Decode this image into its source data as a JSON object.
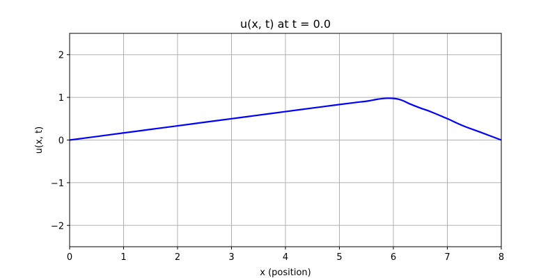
{
  "chart_data": {
    "type": "line",
    "title": "u(x, t) at t = 0.0",
    "xlabel": "x (position)",
    "ylabel": "u(x, t)",
    "xlim": [
      0,
      8
    ],
    "ylim": [
      -2.5,
      2.5
    ],
    "x_ticks": [
      0,
      1,
      2,
      3,
      4,
      5,
      6,
      7,
      8
    ],
    "x_tick_labels": [
      "0",
      "1",
      "2",
      "3",
      "4",
      "5",
      "6",
      "7",
      "8"
    ],
    "y_ticks": [
      -2,
      -1,
      0,
      1,
      2
    ],
    "y_tick_labels": [
      "−2",
      "−1",
      "0",
      "1",
      "2"
    ],
    "grid": true,
    "series": [
      {
        "color": "#0000ff",
        "x": [
          0,
          0.5,
          1,
          1.5,
          2,
          2.5,
          3,
          3.5,
          4,
          4.5,
          5,
          5.3,
          5.5,
          5.7,
          5.8,
          5.9,
          6.0,
          6.1,
          6.2,
          6.3,
          6.5,
          6.7,
          7,
          7.3,
          7.6,
          8
        ],
        "y": [
          0,
          0.083,
          0.167,
          0.25,
          0.333,
          0.417,
          0.5,
          0.583,
          0.667,
          0.75,
          0.833,
          0.88,
          0.91,
          0.955,
          0.972,
          0.98,
          0.975,
          0.955,
          0.91,
          0.85,
          0.75,
          0.66,
          0.5,
          0.33,
          0.19,
          0
        ]
      }
    ]
  }
}
